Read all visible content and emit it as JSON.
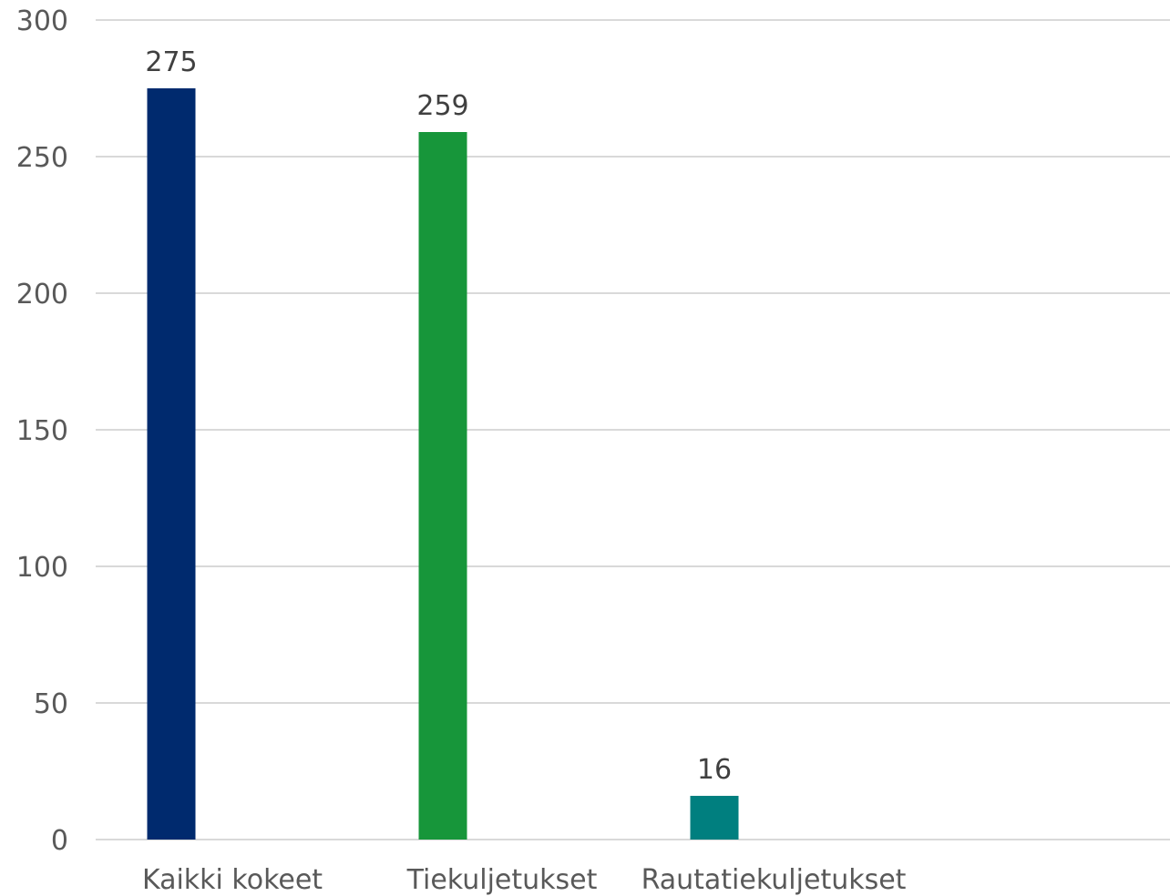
{
  "chart_data": {
    "type": "bar",
    "categories": [
      "Kaikki kokeet",
      "Tiekuljetukset",
      "Rautatiekuljetukset"
    ],
    "values": [
      275,
      259,
      16
    ],
    "data_labels": [
      "275",
      "259",
      "16"
    ],
    "colors": [
      "#002a6e",
      "#17963a",
      "#007f7f"
    ],
    "title": "",
    "xlabel": "",
    "ylabel": "",
    "ylim": [
      0,
      300
    ],
    "yticks": [
      0,
      50,
      100,
      150,
      200,
      250,
      300
    ],
    "ytick_labels": [
      "0",
      "50",
      "100",
      "150",
      "200",
      "250",
      "300"
    ],
    "grid": true,
    "legend": "none",
    "gridline_color": "#d9d9d9",
    "text_color": "#595959"
  }
}
